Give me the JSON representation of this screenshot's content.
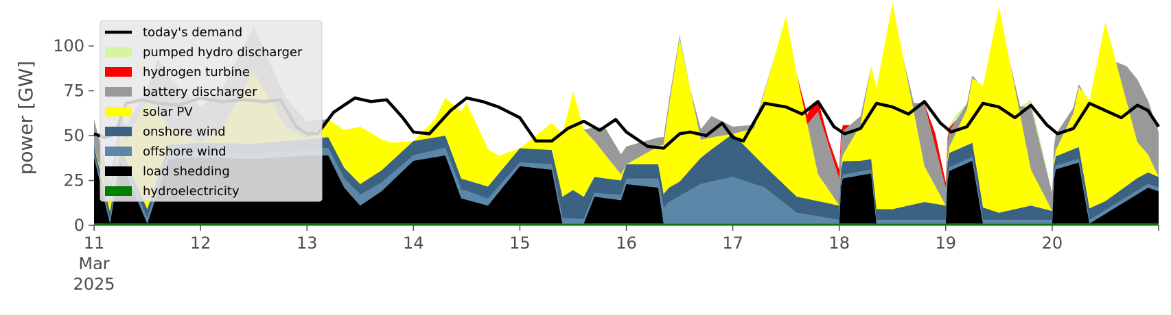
{
  "chart_data": {
    "type": "area",
    "title": "",
    "xlabel": "",
    "ylabel": "power [GW]",
    "x_unit": "day of March 2025",
    "xlim": [
      11,
      21
    ],
    "ylim": [
      0,
      118
    ],
    "yticks": [
      0,
      25,
      50,
      75,
      100
    ],
    "ytick_labels": [
      "0",
      "25",
      "50",
      "75",
      "100"
    ],
    "xticks": [
      11,
      12,
      13,
      14,
      15,
      16,
      17,
      18,
      19,
      20
    ],
    "xtick_labels": [
      "11",
      "12",
      "13",
      "14",
      "15",
      "16",
      "17",
      "18",
      "19",
      "20"
    ],
    "xtick_sublabels": [
      "Mar",
      "2025"
    ],
    "grid": false,
    "legend_position": "top-left",
    "legend": [
      {
        "label": "today's demand",
        "color": "#000000",
        "kind": "line"
      },
      {
        "label": "pumped hydro discharger",
        "color": "#d6f5a1",
        "kind": "patch"
      },
      {
        "label": "hydrogen turbine",
        "color": "#ff0000",
        "kind": "patch"
      },
      {
        "label": "battery discharger",
        "color": "#999999",
        "kind": "patch"
      },
      {
        "label": "solar PV",
        "color": "#ffff00",
        "kind": "patch"
      },
      {
        "label": "onshore wind",
        "color": "#3b6282",
        "kind": "patch"
      },
      {
        "label": "offshore wind",
        "color": "#5b87a8",
        "kind": "patch"
      },
      {
        "label": "load shedding",
        "color": "#000000",
        "kind": "patch"
      },
      {
        "label": "hydroelectricity",
        "color": "#008000",
        "kind": "patch"
      }
    ],
    "series": [
      {
        "name": "hydroelectricity",
        "color": "#008000",
        "x": [
          11,
          12,
          13,
          14,
          15,
          16,
          17,
          18,
          19,
          20,
          21
        ],
        "values": [
          1,
          1,
          1,
          1,
          1,
          1,
          1,
          1,
          1,
          1,
          1
        ]
      },
      {
        "name": "load shedding",
        "color": "#000000",
        "x": [
          11,
          11.15,
          11.25,
          11.5,
          11.7,
          12,
          12.5,
          13,
          13.2,
          13.35,
          13.5,
          13.7,
          14,
          14.3,
          14.45,
          14.7,
          15,
          15.3,
          15.4,
          15.5,
          15.6,
          15.7,
          15.95,
          16,
          16.3,
          16.35,
          17,
          17.5,
          18,
          18.02,
          18.3,
          18.35,
          18.9,
          19,
          19.02,
          19.25,
          19.35,
          19.9,
          20,
          20.02,
          20.25,
          20.35,
          20.9,
          21
        ],
        "values": [
          37,
          0,
          35,
          0,
          36,
          37,
          36,
          38,
          38,
          20,
          10,
          18,
          35,
          38,
          14,
          10,
          32,
          30,
          0,
          0,
          0,
          15,
          13,
          22,
          20,
          0,
          0,
          0,
          0,
          25,
          28,
          0,
          0,
          0,
          29,
          35,
          0,
          0,
          0,
          30,
          34,
          0,
          20,
          18
        ]
      },
      {
        "name": "offshore wind",
        "color": "#5b87a8",
        "x": [
          11,
          11.5,
          12,
          13,
          13.5,
          14,
          14.5,
          15,
          15.3,
          15.4,
          15.7,
          16,
          16.3,
          16.4,
          16.7,
          17,
          17.3,
          17.6,
          18,
          18.5,
          19,
          19.5,
          20,
          20.5,
          21
        ],
        "values": [
          2,
          3,
          3,
          3,
          6,
          3,
          5,
          2,
          3,
          3,
          2,
          3,
          5,
          12,
          22,
          26,
          20,
          6,
          2,
          2,
          2,
          2,
          2,
          2,
          2
        ]
      },
      {
        "name": "onshore wind",
        "color": "#3b6282",
        "x": [
          11,
          11.5,
          12,
          13,
          13.5,
          14,
          14.5,
          15,
          15.3,
          15.5,
          15.7,
          16,
          16.3,
          16.5,
          16.8,
          17,
          17.3,
          17.6,
          18,
          18.2,
          18.5,
          18.8,
          19,
          19.3,
          19.5,
          19.8,
          20,
          20.3,
          20.5,
          20.8,
          21
        ],
        "values": [
          4,
          5,
          5,
          6,
          6,
          8,
          6,
          8,
          8,
          16,
          9,
          8,
          8,
          8,
          18,
          24,
          12,
          9,
          8,
          6,
          6,
          10,
          8,
          8,
          4,
          8,
          5,
          7,
          5,
          7,
          6
        ]
      },
      {
        "name": "solar PV",
        "color": "#ffff00",
        "x": [
          11,
          11.3,
          11.5,
          11.7,
          12,
          12.2,
          12.5,
          12.8,
          13,
          13.2,
          13.5,
          13.8,
          14,
          14.2,
          14.5,
          14.8,
          15,
          15.3,
          15.5,
          15.7,
          16,
          16.3,
          16.5,
          16.7,
          17,
          17.2,
          17.5,
          17.8,
          18,
          18.2,
          18.5,
          18.8,
          19,
          19.2,
          19.5,
          19.8,
          20,
          20.2,
          20.5,
          20.8,
          21
        ],
        "values": [
          0,
          10,
          62,
          10,
          0,
          8,
          40,
          8,
          0,
          10,
          32,
          10,
          0,
          10,
          43,
          10,
          0,
          15,
          55,
          20,
          0,
          10,
          80,
          10,
          0,
          15,
          95,
          15,
          0,
          20,
          115,
          20,
          0,
          20,
          115,
          20,
          0,
          20,
          100,
          20,
          0
        ]
      },
      {
        "name": "battery discharger",
        "color": "#999999",
        "x": [
          11,
          11.5,
          11.6,
          12,
          12.5,
          13,
          13.2,
          15.6,
          15.8,
          16,
          16.6,
          16.8,
          17,
          17.4,
          17.7,
          17.8,
          18,
          18.3,
          18.6,
          18.7,
          18.8,
          19,
          19.3,
          19.6,
          19.7,
          19.8,
          20,
          20.3,
          20.6,
          20.7,
          20.8,
          21
        ],
        "values": [
          15,
          5,
          30,
          20,
          25,
          10,
          0,
          0,
          15,
          10,
          0,
          12,
          4,
          0,
          0,
          35,
          15,
          0,
          0,
          5,
          35,
          10,
          0,
          0,
          5,
          35,
          10,
          0,
          0,
          20,
          35,
          25
        ]
      },
      {
        "name": "hydrogen turbine",
        "color": "#ff0000",
        "x": [
          11,
          17.6,
          17.75,
          17.9,
          18,
          18.1,
          18.8,
          18.9,
          19,
          19.1,
          21
        ],
        "values": [
          0,
          0,
          8,
          3,
          5,
          0,
          0,
          7,
          3,
          0,
          0
        ]
      },
      {
        "name": "pumped hydro discharger",
        "color": "#d6f5a1",
        "x": [
          11,
          19,
          19.1,
          19.2,
          19.7,
          19.8,
          19.9,
          20,
          21
        ],
        "values": [
          0,
          0,
          3,
          0,
          0,
          4,
          2,
          0,
          0
        ]
      }
    ],
    "demand": {
      "name": "today's demand",
      "color": "#000000",
      "x": [
        11,
        11.1,
        11.2,
        11.3,
        11.45,
        11.6,
        11.8,
        12,
        12.2,
        12.4,
        12.6,
        12.75,
        12.9,
        13,
        13.1,
        13.25,
        13.45,
        13.6,
        13.75,
        13.9,
        14,
        14.15,
        14.35,
        14.5,
        14.65,
        14.8,
        15,
        15.15,
        15.3,
        15.45,
        15.6,
        15.75,
        15.9,
        16,
        16.2,
        16.35,
        16.5,
        16.6,
        16.75,
        16.9,
        17,
        17.1,
        17.3,
        17.5,
        17.65,
        17.8,
        17.95,
        18.05,
        18.2,
        18.35,
        18.5,
        18.65,
        18.8,
        18.95,
        19.05,
        19.2,
        19.35,
        19.5,
        19.65,
        19.8,
        19.95,
        20.05,
        20.2,
        20.35,
        20.5,
        20.65,
        20.8,
        20.9,
        21
      ],
      "values": [
        51,
        49,
        51,
        68,
        70,
        68,
        67,
        71,
        69,
        70,
        69,
        70,
        55,
        51,
        51,
        63,
        71,
        69,
        70,
        60,
        52,
        51,
        64,
        71,
        69,
        66,
        60,
        47,
        47,
        54,
        58,
        53,
        59,
        52,
        44,
        43,
        51,
        52,
        50,
        57,
        49,
        47,
        68,
        66,
        62,
        69,
        55,
        51,
        54,
        68,
        66,
        62,
        69,
        57,
        52,
        55,
        68,
        66,
        60,
        67,
        56,
        51,
        54,
        68,
        64,
        60,
        67,
        64,
        55
      ]
    }
  }
}
